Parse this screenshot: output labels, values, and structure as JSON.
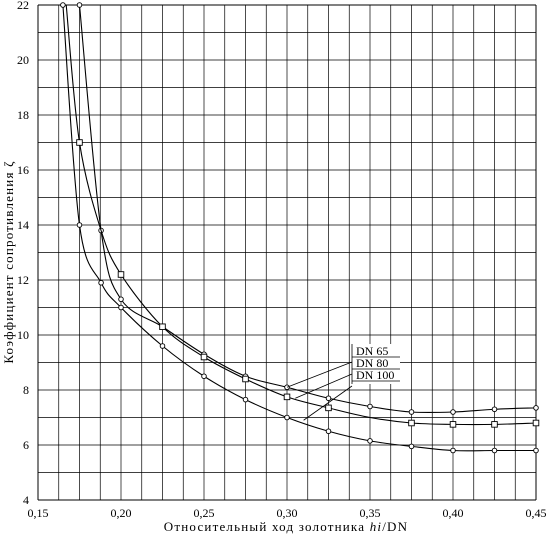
{
  "chart_data": {
    "type": "line",
    "xlabel": "Относительный ход золотника h/DN",
    "xlabel_main": "Относительный ход золотника ",
    "xlabel_var": "hi",
    "xlabel_unit": "/DN",
    "ylabel": "Коэффициент сопротивления ζ",
    "xlim": [
      0.15,
      0.45
    ],
    "ylim": [
      4,
      22
    ],
    "x_ticks": [
      "0,15",
      "0,20",
      "0,25",
      "0,30",
      "0,35",
      "0,40",
      "0,45"
    ],
    "x_tick_values": [
      0.15,
      0.2,
      0.25,
      0.3,
      0.35,
      0.4,
      0.45
    ],
    "y_ticks": [
      "4",
      "6",
      "8",
      "10",
      "12",
      "14",
      "16",
      "18",
      "20",
      "22"
    ],
    "y_tick_values": [
      4,
      6,
      8,
      10,
      12,
      14,
      16,
      18,
      20,
      22
    ],
    "grid": true,
    "series": [
      {
        "name": "DN 65",
        "marker": "circle",
        "x": [
          0.175,
          0.188,
          0.2,
          0.225,
          0.25,
          0.275,
          0.3,
          0.325,
          0.35,
          0.375,
          0.4,
          0.425,
          0.45
        ],
        "y": [
          22.0,
          13.8,
          11.3,
          10.3,
          9.3,
          8.5,
          8.1,
          7.7,
          7.4,
          7.2,
          7.2,
          7.3,
          7.35
        ]
      },
      {
        "name": "DN 80",
        "marker": "square",
        "x": [
          0.167,
          0.175,
          0.188,
          0.2,
          0.225,
          0.25,
          0.275,
          0.3,
          0.325,
          0.35,
          0.375,
          0.4,
          0.425,
          0.45
        ],
        "y": [
          22.0,
          17.0,
          13.8,
          12.2,
          10.3,
          9.2,
          8.4,
          7.75,
          7.35,
          7.0,
          6.8,
          6.75,
          6.75,
          6.8
        ],
        "labeled_points": [
          1,
          3,
          4,
          5,
          6,
          7,
          8,
          10,
          11,
          12,
          13
        ]
      },
      {
        "name": "DN 100",
        "marker": "circle",
        "x": [
          0.165,
          0.175,
          0.188,
          0.2,
          0.225,
          0.25,
          0.275,
          0.3,
          0.325,
          0.35,
          0.375,
          0.4,
          0.425,
          0.45
        ],
        "y": [
          22.0,
          14.0,
          11.9,
          11.0,
          9.6,
          8.5,
          7.65,
          7.0,
          6.5,
          6.15,
          5.95,
          5.8,
          5.8,
          5.8
        ]
      }
    ],
    "legend": [
      "DN 65",
      "DN 80",
      "DN 100"
    ]
  }
}
